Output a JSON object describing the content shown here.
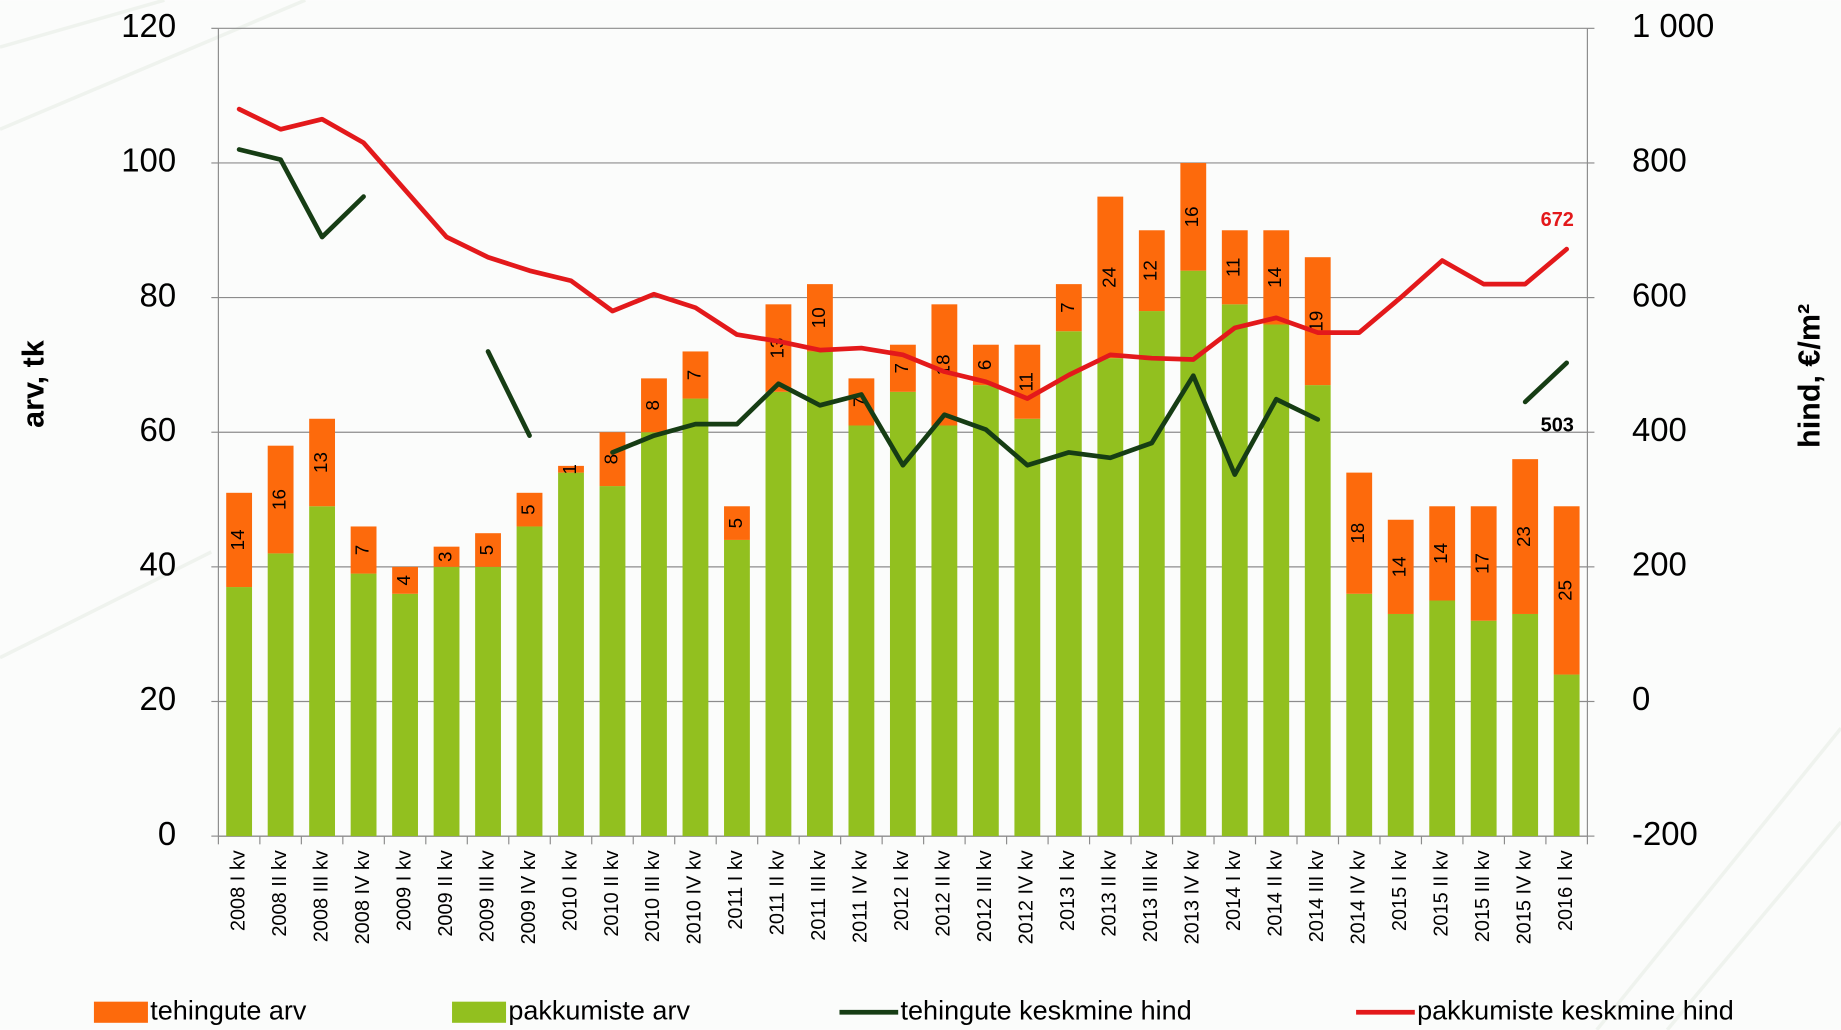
{
  "chart_data": {
    "type": "bar",
    "stacked": true,
    "categories": [
      "2008 I kv",
      "2008 II kv",
      "2008 III kv",
      "2008 IV kv",
      "2009 I kv",
      "2009 II kv",
      "2009 III kv",
      "2009 IV kv",
      "2010 I kv",
      "2010 II kv",
      "2010 III kv",
      "2010 IV kv",
      "2011 I kv",
      "2011 II kv",
      "2011 III kv",
      "2011 IV kv",
      "2012 I kv",
      "2012 II kv",
      "2012 III kv",
      "2012 IV kv",
      "2013 I kv",
      "2013 II kv",
      "2013 III kv",
      "2013 IV kv",
      "2014 I kv",
      "2014 II kv",
      "2014 III kv",
      "2014 IV kv",
      "2015 I kv",
      "2015 II kv",
      "2015 III kv",
      "2015 IV kv",
      "2016 I kv"
    ],
    "series": [
      {
        "name": "tehingute arv",
        "type": "bar",
        "color": "#fd6a0c",
        "show_labels": true,
        "values": [
          14,
          16,
          13,
          7,
          4,
          3,
          5,
          5,
          1,
          8,
          8,
          7,
          5,
          13,
          10,
          7,
          7,
          18,
          6,
          11,
          7,
          24,
          12,
          16,
          11,
          14,
          19,
          18,
          14,
          14,
          17,
          23,
          25
        ]
      },
      {
        "name": "pakkumiste arv",
        "type": "bar",
        "color": "#92c01f",
        "values": [
          37,
          42,
          49,
          39,
          36,
          40,
          40,
          46,
          54,
          52,
          60,
          65,
          44,
          66,
          72,
          61,
          66,
          61,
          67,
          62,
          75,
          71,
          78,
          84,
          79,
          76,
          67,
          36,
          33,
          35,
          32,
          33,
          24
        ]
      },
      {
        "name": "tehingute keskmine hind",
        "type": "line",
        "axis": "y2",
        "color": "#163d14",
        "label_last": true,
        "values": [
          820,
          805,
          690,
          750,
          null,
          null,
          520,
          395,
          null,
          370,
          395,
          412,
          412,
          472,
          440,
          456,
          351,
          426,
          404,
          351,
          370,
          362,
          384,
          484,
          337,
          449,
          419,
          null,
          null,
          null,
          null,
          445,
          503
        ]
      },
      {
        "name": "pakkumiste keskmine hind",
        "type": "line",
        "axis": "y2",
        "color": "#e3191b",
        "label_last": true,
        "values": [
          880,
          850,
          865,
          830,
          760,
          690,
          660,
          640,
          625,
          580,
          605,
          585,
          545,
          535,
          522,
          525,
          515,
          490,
          475,
          450,
          485,
          515,
          510,
          508,
          555,
          570,
          548,
          548,
          600,
          655,
          620,
          620,
          672
        ]
      }
    ],
    "ylabel": "arv, tk",
    "y2label": "hind, €/m²",
    "ylim": [
      0,
      120
    ],
    "yticks": [
      0,
      20,
      40,
      60,
      80,
      100,
      120
    ],
    "y2lim": [
      -200,
      1000
    ],
    "y2ticks": [
      -200,
      0,
      200,
      400,
      600,
      800,
      {
        "value": 1000,
        "label": "1 000"
      }
    ],
    "grid": true,
    "legend": "bottom"
  }
}
